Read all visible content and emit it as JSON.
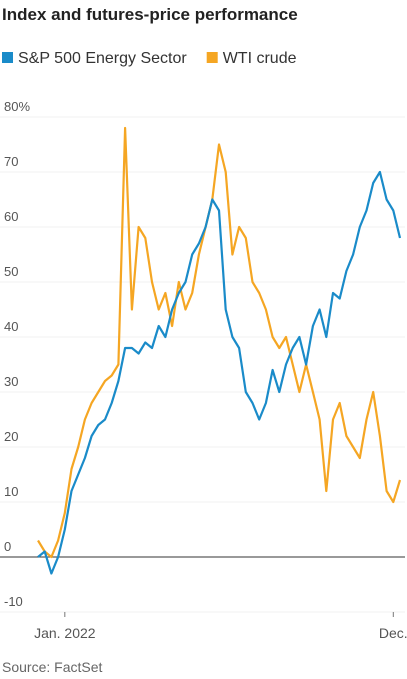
{
  "chart_data": {
    "type": "line",
    "title": "Index and futures-price performance",
    "source": "Source: FactSet",
    "categories": [
      null,
      null,
      null,
      null,
      "Jan. 2022",
      null,
      null,
      null,
      null,
      null,
      null,
      null,
      null,
      null,
      null,
      null,
      null,
      null,
      null,
      null,
      null,
      null,
      null,
      null,
      null,
      null,
      null,
      null,
      null,
      null,
      null,
      null,
      null,
      null,
      null,
      null,
      null,
      null,
      null,
      null,
      null,
      null,
      null,
      null,
      null,
      null,
      null,
      null,
      null,
      null,
      null,
      null,
      null,
      "Dec.",
      null
    ],
    "series": [
      {
        "name": "S&P 500 Energy Sector",
        "color": "#1a8bc9",
        "values": [
          0,
          1,
          -3,
          0,
          5,
          12,
          15,
          18,
          22,
          24,
          25,
          28,
          32,
          38,
          38,
          37,
          39,
          38,
          42,
          40,
          45,
          48,
          50,
          55,
          57,
          60,
          65,
          63,
          45,
          40,
          38,
          30,
          28,
          25,
          28,
          34,
          30,
          35,
          38,
          40,
          35,
          42,
          45,
          40,
          48,
          47,
          52,
          55,
          60,
          63,
          68,
          70,
          65,
          63,
          58
        ]
      },
      {
        "name": "WTI crude",
        "color": "#f5a623",
        "values": [
          3,
          1,
          0,
          3,
          8,
          16,
          20,
          25,
          28,
          30,
          32,
          33,
          35,
          78,
          45,
          60,
          58,
          50,
          45,
          48,
          42,
          50,
          45,
          48,
          55,
          60,
          65,
          75,
          70,
          55,
          60,
          58,
          50,
          48,
          45,
          40,
          38,
          40,
          35,
          30,
          35,
          30,
          25,
          12,
          25,
          28,
          22,
          20,
          18,
          25,
          30,
          22,
          12,
          10,
          14
        ]
      }
    ],
    "ylim": [
      -10,
      80
    ],
    "yticks": [
      -10,
      0,
      10,
      20,
      30,
      40,
      50,
      60,
      70,
      {
        "value": 80,
        "label": "80%"
      }
    ],
    "grid": true
  }
}
